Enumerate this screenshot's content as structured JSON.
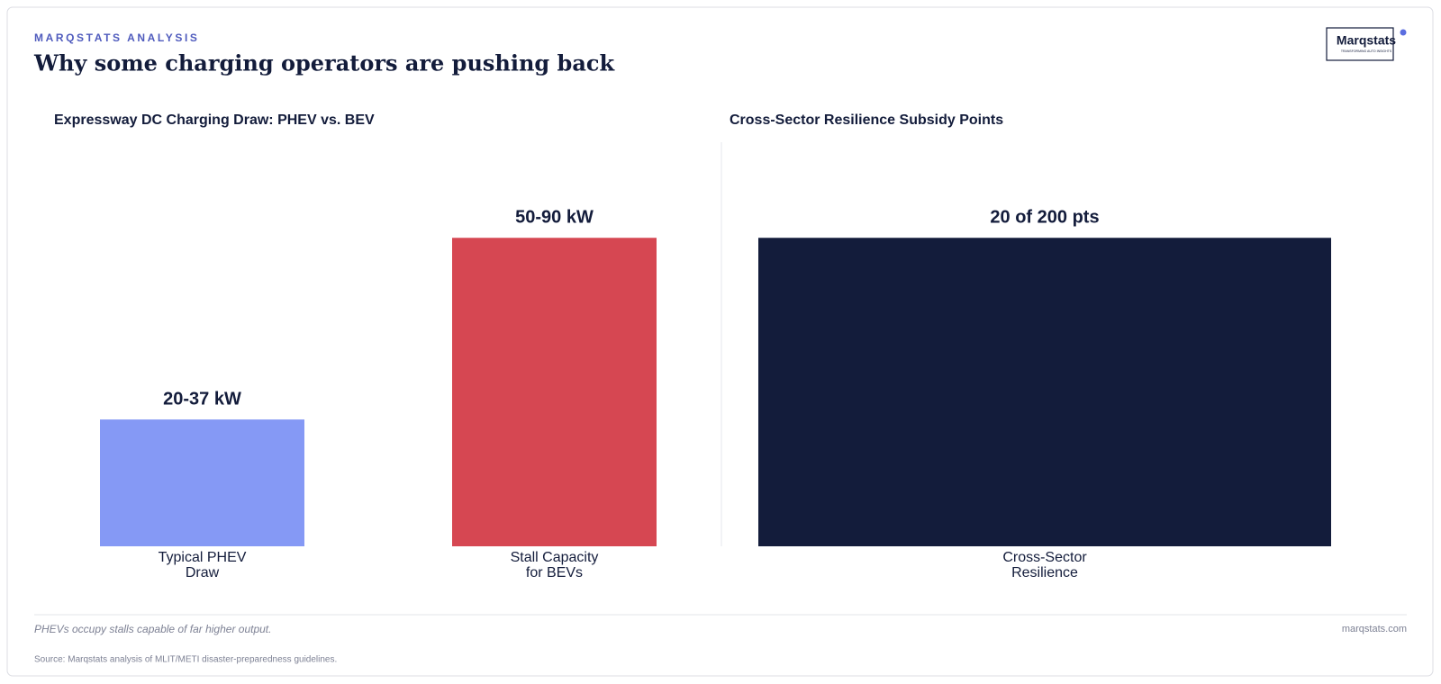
{
  "header": {
    "kicker": "MARQSTATS ANALYSIS",
    "title": "Why some charging operators are pushing back",
    "logo": "Marqstats",
    "logo_tagline": "TRANSFORMING AUTO INSIGHTS"
  },
  "chart_data": [
    {
      "type": "bar",
      "title": "Expressway DC Charging Draw: PHEV vs. BEV",
      "categories": [
        "Typical PHEV Draw",
        "Stall Capacity for BEVs"
      ],
      "values": [
        37,
        90
      ],
      "value_labels": [
        "20-37 kW",
        "50-90 kW"
      ],
      "colors": [
        "#8599f5",
        "#d64752"
      ]
    },
    {
      "type": "bar",
      "title": "Cross-Sector Resilience Subsidy Points",
      "categories": [
        "Cross-Sector Resilience"
      ],
      "values": [
        20
      ],
      "value_labels": [
        "20 of 200 pts"
      ],
      "colors": [
        "#131c3b"
      ]
    }
  ],
  "footer": {
    "note": "PHEVs occupy stalls capable of far higher output.",
    "site": "marqstats.com",
    "source": "Source: Marqstats analysis of MLIT/METI disaster-preparedness guidelines."
  }
}
